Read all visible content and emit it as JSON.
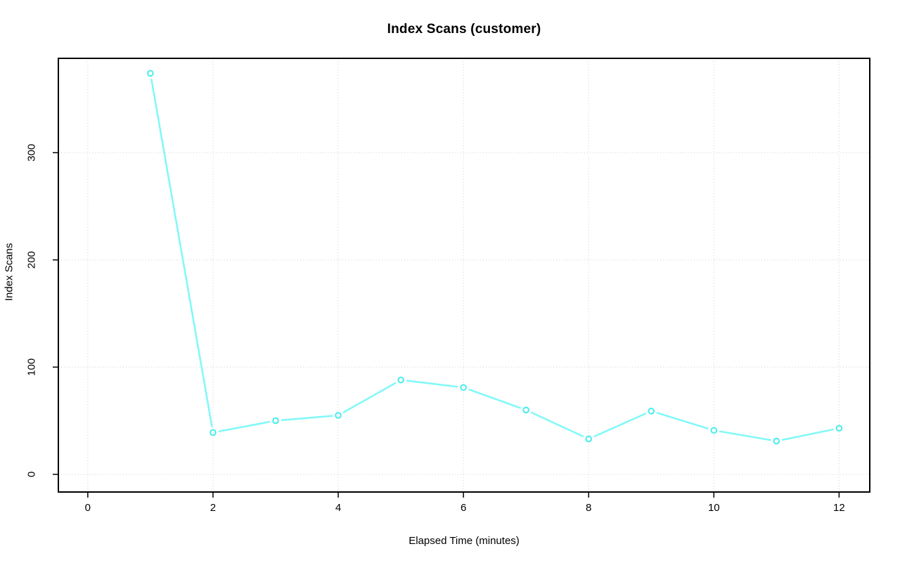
{
  "chart_data": {
    "type": "line",
    "title": "Index Scans (customer)",
    "xlabel": "Elapsed Time (minutes)",
    "ylabel": "Index Scans",
    "x": [
      1,
      2,
      3,
      4,
      5,
      6,
      7,
      8,
      9,
      10,
      11,
      12
    ],
    "values": [
      374,
      39,
      50,
      55,
      88,
      81,
      60,
      33,
      59,
      41,
      31,
      43
    ],
    "series": [
      {
        "name": "index-scans-customer",
        "x": [
          1,
          2,
          3,
          4,
          5,
          6,
          7,
          8,
          9,
          10,
          11,
          12
        ],
        "values": [
          374,
          39,
          50,
          55,
          88,
          81,
          60,
          33,
          59,
          41,
          31,
          43
        ]
      }
    ],
    "x_ticks": [
      0,
      2,
      4,
      6,
      8,
      10,
      12
    ],
    "y_ticks": [
      0,
      100,
      200,
      300
    ],
    "xlim": [
      -0.47,
      12.49
    ],
    "ylim": [
      -16.5,
      388
    ],
    "grid": true,
    "grid_style": "dotted",
    "legend_position": "none",
    "marker": "open-circle",
    "line_style": "segments-with-gaps",
    "colors": {
      "line": "#80F8F8",
      "marker": "#47EDED",
      "grid": "#CFCFCF",
      "axis": "#000000",
      "text": "#000000",
      "background": "#FFFFFF"
    }
  }
}
